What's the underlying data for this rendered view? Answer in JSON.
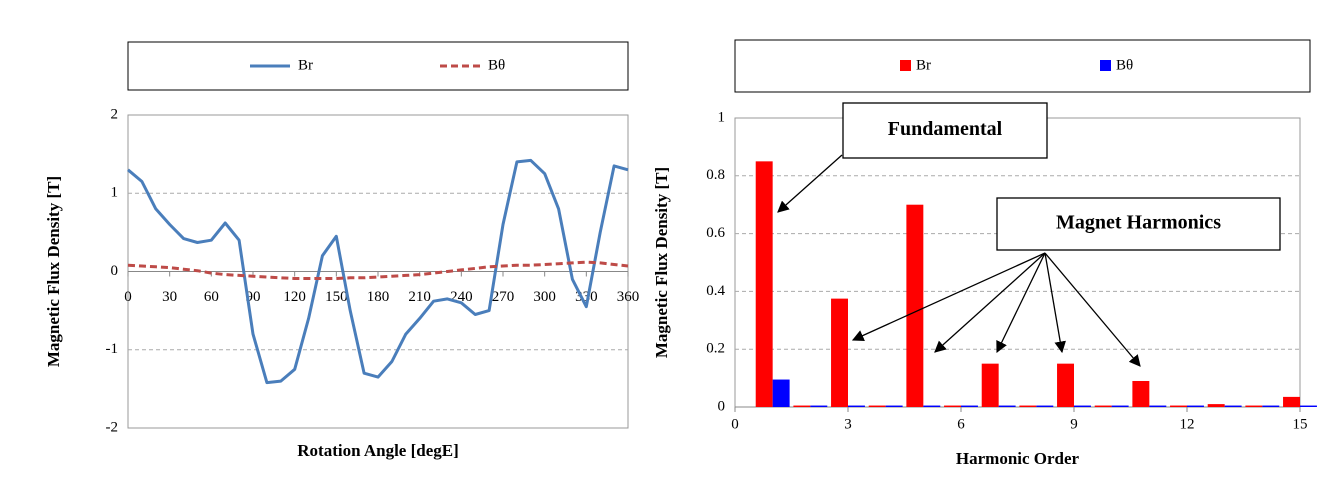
{
  "chart_data": [
    {
      "type": "line",
      "xlabel": "Rotation Angle [degE]",
      "ylabel": "Magnetic Flux Density [T]",
      "x": [
        0,
        10,
        20,
        30,
        40,
        50,
        60,
        70,
        80,
        90,
        100,
        110,
        120,
        130,
        140,
        150,
        160,
        170,
        180,
        190,
        200,
        210,
        220,
        230,
        240,
        250,
        260,
        270,
        280,
        290,
        300,
        310,
        320,
        330,
        340,
        350,
        360
      ],
      "series": [
        {
          "name": "Br",
          "color": "#4a7ebb",
          "line_style": "solid",
          "values": [
            1.3,
            1.15,
            0.8,
            0.6,
            0.42,
            0.37,
            0.4,
            0.62,
            0.4,
            -0.8,
            -1.42,
            -1.4,
            -1.25,
            -0.6,
            0.2,
            0.45,
            -0.5,
            -1.3,
            -1.35,
            -1.15,
            -0.8,
            -0.6,
            -0.38,
            -0.35,
            -0.4,
            -0.55,
            -0.5,
            0.6,
            1.4,
            1.42,
            1.25,
            0.8,
            -0.1,
            -0.45,
            0.5,
            1.35,
            1.3
          ]
        },
        {
          "name": "Bθ",
          "color": "#be4b48",
          "line_style": "dashed",
          "values": [
            0.08,
            0.07,
            0.06,
            0.05,
            0.03,
            0.01,
            -0.02,
            -0.04,
            -0.05,
            -0.06,
            -0.07,
            -0.08,
            -0.09,
            -0.09,
            -0.09,
            -0.09,
            -0.08,
            -0.08,
            -0.07,
            -0.06,
            -0.05,
            -0.04,
            -0.02,
            0,
            0.02,
            0.04,
            0.06,
            0.07,
            0.08,
            0.08,
            0.09,
            0.1,
            0.11,
            0.12,
            0.11,
            0.09,
            0.07
          ]
        }
      ],
      "xlim": [
        0,
        360
      ],
      "xticks": [
        0,
        30,
        60,
        90,
        120,
        150,
        180,
        210,
        240,
        270,
        300,
        330,
        360
      ],
      "ylim": [
        -2,
        2
      ],
      "yticks": [
        -2,
        -1,
        0,
        1,
        2
      ],
      "grid": true
    },
    {
      "type": "bar",
      "xlabel": "Harmonic Order",
      "ylabel": "Magnetic Flux Density [T]",
      "x": [
        1,
        2,
        3,
        4,
        5,
        6,
        7,
        8,
        9,
        10,
        11,
        12,
        13,
        14,
        15
      ],
      "series": [
        {
          "name": "Br",
          "color": "#ff0000",
          "values": [
            0.85,
            0.005,
            0.375,
            0.005,
            0.7,
            0.005,
            0.15,
            0.005,
            0.15,
            0.005,
            0.09,
            0.005,
            0.01,
            0.005,
            0.035
          ]
        },
        {
          "name": "Bθ",
          "color": "#0000ff",
          "values": [
            0.095,
            0.005,
            0.005,
            0.005,
            0.005,
            0.005,
            0.005,
            0.005,
            0.005,
            0.005,
            0.005,
            0.005,
            0.005,
            0.005,
            0.005
          ]
        }
      ],
      "xlim": [
        0,
        15
      ],
      "xticks": [
        0,
        3,
        6,
        9,
        12,
        15
      ],
      "ylim": [
        0,
        1
      ],
      "yticks": [
        0,
        0.2,
        0.4,
        0.6,
        0.8,
        1
      ],
      "grid": true,
      "annotations": [
        "Fundamental",
        "Magnet Harmonics"
      ]
    }
  ]
}
